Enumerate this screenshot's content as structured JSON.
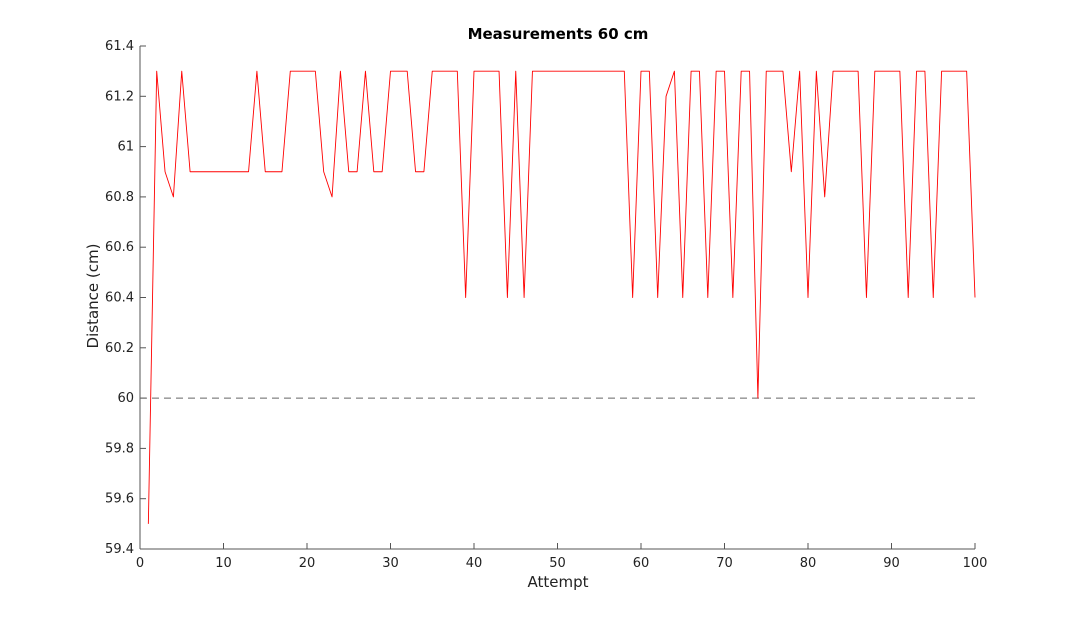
{
  "chart_data": {
    "type": "line",
    "title": "Measurements 60 cm",
    "xlabel": "Attempt",
    "ylabel": "Distance (cm)",
    "xlim": [
      0,
      100
    ],
    "ylim": [
      59.4,
      61.4
    ],
    "xticks": [
      0,
      10,
      20,
      30,
      40,
      50,
      60,
      70,
      80,
      90,
      100
    ],
    "xtick_labels": [
      "0",
      "10",
      "20",
      "30",
      "40",
      "50",
      "60",
      "70",
      "80",
      "90",
      "100"
    ],
    "yticks": [
      59.4,
      59.6,
      59.8,
      60,
      60.2,
      60.4,
      60.6,
      60.8,
      61,
      61.2,
      61.4
    ],
    "ytick_labels": [
      "59.4",
      "59.6",
      "59.8",
      "60",
      "60.2",
      "60.4",
      "60.6",
      "60.8",
      "61",
      "61.2",
      "61.4"
    ],
    "grid": false,
    "series": [
      {
        "color": "#ff0000",
        "x": [
          1,
          2,
          3,
          4,
          5,
          6,
          7,
          8,
          9,
          10,
          11,
          12,
          13,
          14,
          15,
          16,
          17,
          18,
          19,
          20,
          21,
          22,
          23,
          24,
          25,
          26,
          27,
          28,
          29,
          30,
          31,
          32,
          33,
          34,
          35,
          36,
          37,
          38,
          39,
          40,
          41,
          42,
          43,
          44,
          45,
          46,
          47,
          48,
          49,
          50,
          51,
          52,
          53,
          54,
          55,
          56,
          57,
          58,
          59,
          60,
          61,
          62,
          63,
          64,
          65,
          66,
          67,
          68,
          69,
          70,
          71,
          72,
          73,
          74,
          75,
          76,
          77,
          78,
          79,
          80,
          81,
          82,
          83,
          84,
          85,
          86,
          87,
          88,
          89,
          90,
          91,
          92,
          93,
          94,
          95,
          96,
          97,
          98,
          99,
          100
        ],
        "y": [
          59.5,
          61.3,
          60.9,
          60.8,
          61.3,
          60.9,
          60.9,
          60.9,
          60.9,
          60.9,
          60.9,
          60.9,
          60.9,
          61.3,
          60.9,
          60.9,
          60.9,
          61.3,
          61.3,
          61.3,
          61.3,
          60.9,
          60.8,
          61.3,
          60.9,
          60.9,
          61.3,
          60.9,
          60.9,
          61.3,
          61.3,
          61.3,
          60.9,
          60.9,
          61.3,
          61.3,
          61.3,
          61.3,
          60.4,
          61.3,
          61.3,
          61.3,
          61.3,
          60.4,
          61.3,
          60.4,
          61.3,
          61.3,
          61.3,
          61.3,
          61.3,
          61.3,
          61.3,
          61.3,
          61.3,
          61.3,
          61.3,
          61.3,
          60.4,
          61.3,
          61.3,
          60.4,
          61.2,
          61.3,
          60.4,
          61.3,
          61.3,
          60.4,
          61.3,
          61.3,
          60.4,
          61.3,
          61.3,
          60.0,
          61.3,
          61.3,
          61.3,
          60.9,
          61.3,
          60.4,
          61.3,
          60.8,
          61.3,
          61.3,
          61.3,
          61.3,
          60.4,
          61.3,
          61.3,
          61.3,
          61.3,
          60.4,
          61.3,
          61.3,
          60.4,
          61.3,
          61.3,
          61.3,
          61.3,
          60.4
        ]
      }
    ],
    "reference_line": {
      "y": 60,
      "style": "dashed",
      "color": "#666666"
    }
  }
}
